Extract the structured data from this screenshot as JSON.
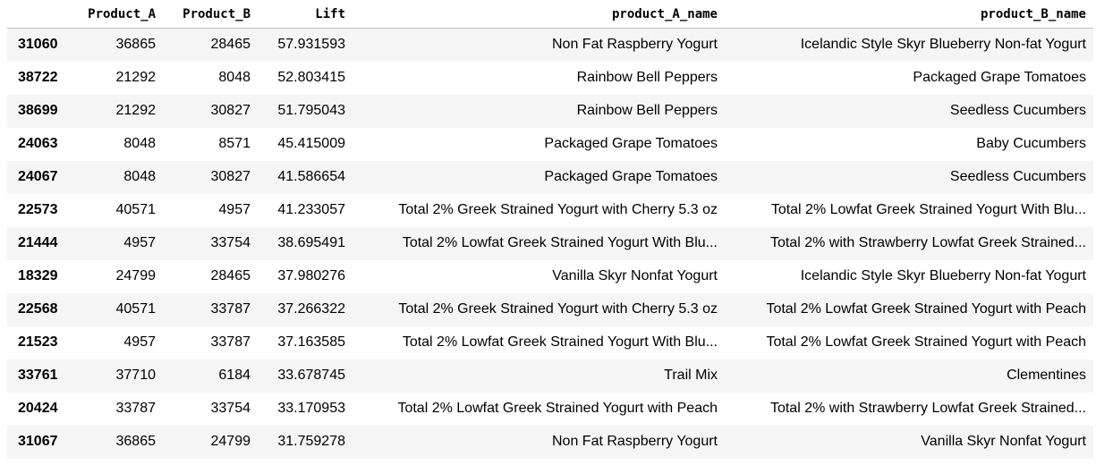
{
  "table": {
    "columns": [
      "",
      "Product_A",
      "Product_B",
      "Lift",
      "product_A_name",
      "product_B_name"
    ],
    "rows": [
      {
        "index": "31060",
        "Product_A": "36865",
        "Product_B": "28465",
        "Lift": "57.931593",
        "product_A_name": "Non Fat Raspberry Yogurt",
        "product_B_name": "Icelandic Style Skyr Blueberry Non-fat Yogurt"
      },
      {
        "index": "38722",
        "Product_A": "21292",
        "Product_B": "8048",
        "Lift": "52.803415",
        "product_A_name": "Rainbow Bell Peppers",
        "product_B_name": "Packaged Grape Tomatoes"
      },
      {
        "index": "38699",
        "Product_A": "21292",
        "Product_B": "30827",
        "Lift": "51.795043",
        "product_A_name": "Rainbow Bell Peppers",
        "product_B_name": "Seedless Cucumbers"
      },
      {
        "index": "24063",
        "Product_A": "8048",
        "Product_B": "8571",
        "Lift": "45.415009",
        "product_A_name": "Packaged Grape Tomatoes",
        "product_B_name": "Baby Cucumbers"
      },
      {
        "index": "24067",
        "Product_A": "8048",
        "Product_B": "30827",
        "Lift": "41.586654",
        "product_A_name": "Packaged Grape Tomatoes",
        "product_B_name": "Seedless Cucumbers"
      },
      {
        "index": "22573",
        "Product_A": "40571",
        "Product_B": "4957",
        "Lift": "41.233057",
        "product_A_name": "Total 2% Greek Strained Yogurt with Cherry 5.3 oz",
        "product_B_name": "Total 2% Lowfat Greek Strained Yogurt With Blu..."
      },
      {
        "index": "21444",
        "Product_A": "4957",
        "Product_B": "33754",
        "Lift": "38.695491",
        "product_A_name": "Total 2% Lowfat Greek Strained Yogurt With Blu...",
        "product_B_name": "Total 2% with Strawberry Lowfat Greek Strained..."
      },
      {
        "index": "18329",
        "Product_A": "24799",
        "Product_B": "28465",
        "Lift": "37.980276",
        "product_A_name": "Vanilla Skyr Nonfat Yogurt",
        "product_B_name": "Icelandic Style Skyr Blueberry Non-fat Yogurt"
      },
      {
        "index": "22568",
        "Product_A": "40571",
        "Product_B": "33787",
        "Lift": "37.266322",
        "product_A_name": "Total 2% Greek Strained Yogurt with Cherry 5.3 oz",
        "product_B_name": "Total 2% Lowfat Greek Strained Yogurt with Peach"
      },
      {
        "index": "21523",
        "Product_A": "4957",
        "Product_B": "33787",
        "Lift": "37.163585",
        "product_A_name": "Total 2% Lowfat Greek Strained Yogurt With Blu...",
        "product_B_name": "Total 2% Lowfat Greek Strained Yogurt with Peach"
      },
      {
        "index": "33761",
        "Product_A": "37710",
        "Product_B": "6184",
        "Lift": "33.678745",
        "product_A_name": "Trail Mix",
        "product_B_name": "Clementines"
      },
      {
        "index": "20424",
        "Product_A": "33787",
        "Product_B": "33754",
        "Lift": "33.170953",
        "product_A_name": "Total 2% Lowfat Greek Strained Yogurt with Peach",
        "product_B_name": "Total 2% with Strawberry Lowfat Greek Strained..."
      },
      {
        "index": "31067",
        "Product_A": "36865",
        "Product_B": "24799",
        "Lift": "31.759278",
        "product_A_name": "Non Fat Raspberry Yogurt",
        "product_B_name": "Vanilla Skyr Nonfat Yogurt"
      }
    ]
  }
}
